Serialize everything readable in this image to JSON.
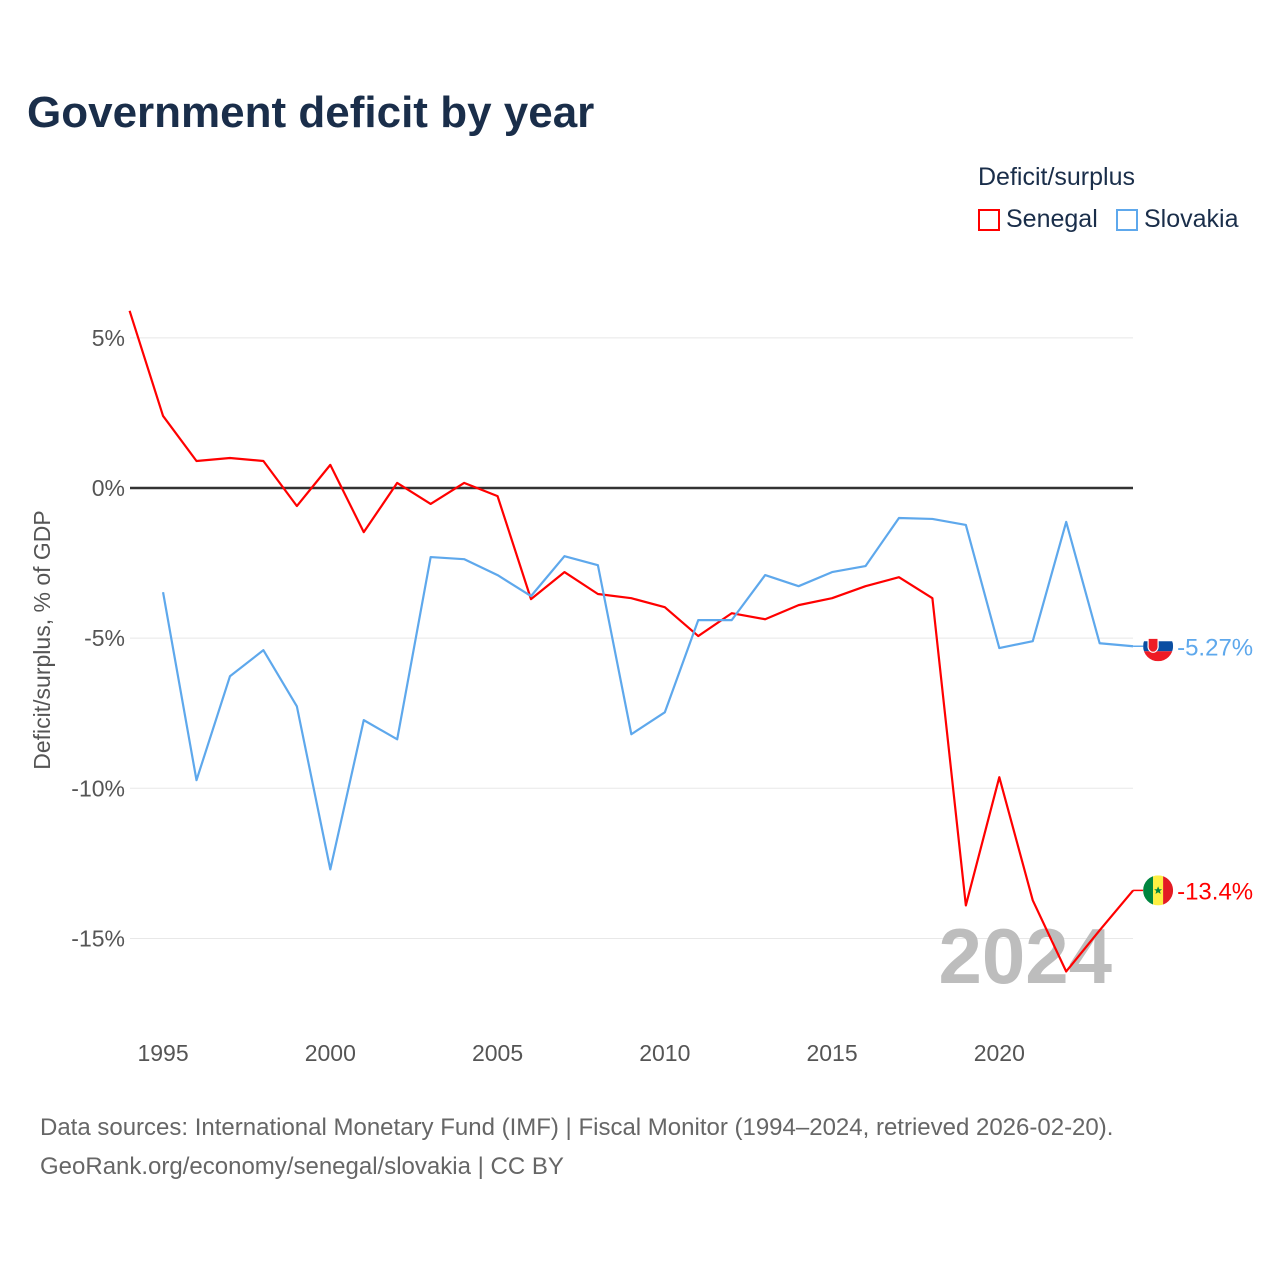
{
  "chart_data": {
    "type": "line",
    "title": "Government deficit by year",
    "ylabel": "Deficit/surplus, % of GDP",
    "xlabel": "",
    "xlim": [
      1994,
      2024
    ],
    "ylim": [
      -18,
      6
    ],
    "yticks": [
      5,
      0,
      -5,
      -10,
      -15
    ],
    "ytick_labels": [
      "5%",
      "0%",
      "-5%",
      "-10%",
      "-15%"
    ],
    "xticks": [
      1995,
      2000,
      2005,
      2010,
      2015,
      2020
    ],
    "xtick_labels": [
      "1995",
      "2000",
      "2005",
      "2010",
      "2015",
      "2020"
    ],
    "legend_title": "Deficit/surplus",
    "legend_placement": "top-right",
    "year_watermark": "2024",
    "series": [
      {
        "name": "Senegal",
        "color": "#ff0000",
        "end_label": "-13.4%",
        "x": [
          1994,
          1995,
          1996,
          1997,
          1998,
          1999,
          2000,
          2001,
          2002,
          2003,
          2004,
          2005,
          2006,
          2007,
          2008,
          2009,
          2010,
          2011,
          2012,
          2013,
          2014,
          2015,
          2016,
          2017,
          2018,
          2019,
          2020,
          2021,
          2022,
          2023,
          2024
        ],
        "values": [
          5.9,
          2.4,
          0.9,
          1.0,
          0.9,
          -0.6,
          0.77,
          -1.47,
          0.17,
          -0.53,
          0.17,
          -0.27,
          -3.7,
          -2.8,
          -3.53,
          -3.67,
          -3.97,
          -4.93,
          -4.17,
          -4.37,
          -3.9,
          -3.67,
          -3.27,
          -2.97,
          -3.67,
          -13.9,
          -9.63,
          -13.73,
          -16.1,
          -14.73,
          -13.4
        ]
      },
      {
        "name": "Slovakia",
        "color": "#5ea8ec",
        "end_label": "-5.27%",
        "x": [
          1995,
          1996,
          1997,
          1998,
          1999,
          2000,
          2001,
          2002,
          2003,
          2004,
          2005,
          2006,
          2007,
          2008,
          2009,
          2010,
          2011,
          2012,
          2013,
          2014,
          2015,
          2016,
          2017,
          2018,
          2019,
          2020,
          2021,
          2022,
          2023,
          2024
        ],
        "values": [
          -3.47,
          -9.73,
          -6.27,
          -5.4,
          -7.27,
          -12.7,
          -7.73,
          -8.37,
          -2.3,
          -2.37,
          -2.9,
          -3.6,
          -2.27,
          -2.57,
          -8.2,
          -7.47,
          -4.4,
          -4.4,
          -2.9,
          -3.27,
          -2.8,
          -2.6,
          -1.0,
          -1.03,
          -1.23,
          -5.33,
          -5.1,
          -1.13,
          -5.17,
          -5.27
        ]
      }
    ]
  },
  "source": {
    "line1": "Data sources: International Monetary Fund (IMF) | Fiscal Monitor (1994–2024, retrieved 2026-02-20).",
    "line2": "GeoRank.org/economy/senegal/slovakia | CC BY"
  }
}
